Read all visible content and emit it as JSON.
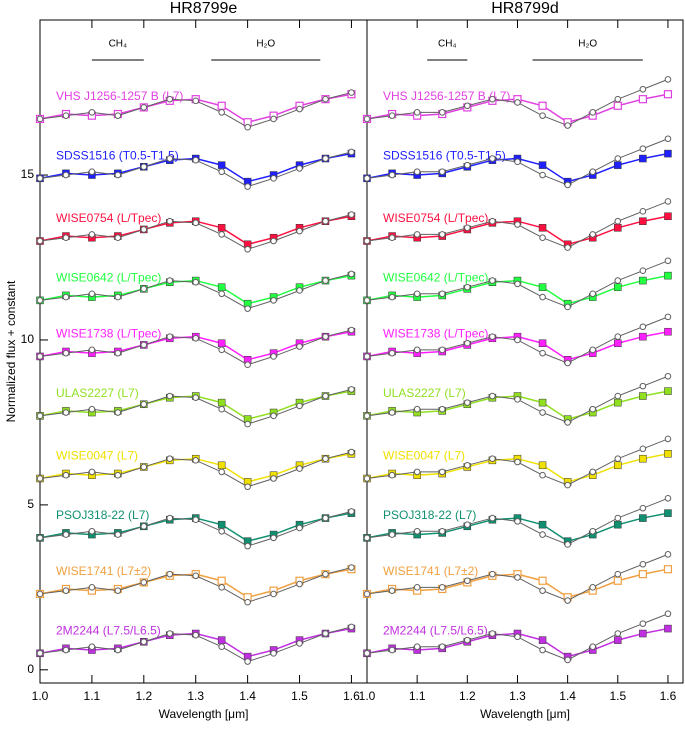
{
  "chart_data": [
    {
      "type": "line",
      "title": "HR8799e",
      "x_label": "Wavelength [μm]",
      "y_label": "Normalized flux + constant",
      "x": [
        1.0,
        1.05,
        1.1,
        1.15,
        1.2,
        1.25,
        1.3,
        1.35,
        1.4,
        1.45,
        1.5,
        1.55,
        1.6
      ],
      "xlim": [
        1.0,
        1.63
      ],
      "ylim": [
        -0.4,
        19.7
      ],
      "xticks": [
        {
          "value": 1.0,
          "label": "1.0"
        },
        1.1,
        1.2,
        1.3,
        1.4,
        1.5,
        1.6
      ],
      "yticks": [
        0,
        5,
        10,
        15
      ],
      "annotations": [
        {
          "text": "CH₄",
          "x": [
            1.1,
            1.2
          ]
        },
        {
          "text": "H₂O",
          "x": [
            1.33,
            1.54
          ]
        }
      ],
      "series": [
        {
          "name": "2M2244 (L7.5/L6.5)",
          "color": "#c030e0",
          "marker": "filled",
          "values": [
            0.5,
            0.65,
            0.6,
            0.65,
            0.85,
            1.05,
            1.1,
            0.9,
            0.4,
            0.6,
            0.9,
            1.1,
            1.25
          ]
        },
        {
          "color": "#606060",
          "values": [
            0.5,
            0.6,
            0.7,
            0.6,
            0.85,
            1.1,
            1.05,
            0.7,
            0.25,
            0.5,
            0.8,
            1.1,
            1.3
          ]
        },
        {
          "name": "WISE1741 (L7±2)",
          "color": "#f0a040",
          "marker": "open",
          "values": [
            2.3,
            2.45,
            2.4,
            2.45,
            2.65,
            2.85,
            2.9,
            2.7,
            2.2,
            2.4,
            2.7,
            2.9,
            3.05
          ]
        },
        {
          "color": "#606060",
          "values": [
            2.3,
            2.4,
            2.5,
            2.4,
            2.65,
            2.9,
            2.85,
            2.5,
            2.05,
            2.3,
            2.6,
            2.9,
            3.1
          ]
        },
        {
          "name": "PSOJ318-22 (L7)",
          "color": "#109070",
          "marker": "filled",
          "values": [
            4.0,
            4.15,
            4.1,
            4.15,
            4.35,
            4.55,
            4.6,
            4.4,
            3.9,
            4.1,
            4.4,
            4.6,
            4.75
          ]
        },
        {
          "color": "#606060",
          "values": [
            4.0,
            4.1,
            4.2,
            4.1,
            4.35,
            4.6,
            4.55,
            4.2,
            3.75,
            4.0,
            4.3,
            4.6,
            4.8
          ]
        },
        {
          "name": "WISE0047 (L7)",
          "color": "#f0e000",
          "marker": "filled",
          "values": [
            5.8,
            5.95,
            5.9,
            5.95,
            6.15,
            6.35,
            6.4,
            6.2,
            5.7,
            5.9,
            6.2,
            6.4,
            6.55
          ]
        },
        {
          "color": "#606060",
          "values": [
            5.8,
            5.9,
            6.0,
            5.9,
            6.15,
            6.4,
            6.35,
            6.0,
            5.55,
            5.8,
            6.1,
            6.4,
            6.6
          ]
        },
        {
          "name": "ULAS2227 (L7)",
          "color": "#90e020",
          "marker": "filled",
          "values": [
            7.7,
            7.85,
            7.8,
            7.85,
            8.05,
            8.25,
            8.3,
            8.1,
            7.6,
            7.8,
            8.1,
            8.3,
            8.45
          ]
        },
        {
          "color": "#606060",
          "values": [
            7.7,
            7.8,
            7.9,
            7.8,
            8.05,
            8.3,
            8.25,
            7.9,
            7.45,
            7.7,
            8.0,
            8.3,
            8.5
          ]
        },
        {
          "name": "WISE1738 (L/Tpec)",
          "color": "#ff20ff",
          "marker": "filled",
          "values": [
            9.5,
            9.65,
            9.6,
            9.65,
            9.85,
            10.05,
            10.1,
            9.9,
            9.4,
            9.6,
            9.9,
            10.1,
            10.25
          ]
        },
        {
          "color": "#606060",
          "values": [
            9.5,
            9.6,
            9.7,
            9.6,
            9.85,
            10.1,
            10.05,
            9.7,
            9.25,
            9.5,
            9.8,
            10.1,
            10.3
          ]
        },
        {
          "name": "WISE0642 (L/Tpec)",
          "color": "#20ff40",
          "marker": "filled",
          "values": [
            11.2,
            11.35,
            11.3,
            11.35,
            11.55,
            11.75,
            11.8,
            11.6,
            11.1,
            11.3,
            11.6,
            11.8,
            11.95
          ]
        },
        {
          "color": "#606060",
          "values": [
            11.2,
            11.3,
            11.4,
            11.3,
            11.55,
            11.8,
            11.75,
            11.4,
            10.95,
            11.2,
            11.5,
            11.8,
            12.0
          ]
        },
        {
          "name": "WISE0754 (L/Tpec)",
          "color": "#ff1040",
          "marker": "filled",
          "values": [
            13.0,
            13.15,
            13.1,
            13.15,
            13.35,
            13.55,
            13.6,
            13.4,
            12.9,
            13.1,
            13.4,
            13.6,
            13.75
          ]
        },
        {
          "color": "#606060",
          "values": [
            13.0,
            13.1,
            13.2,
            13.1,
            13.35,
            13.6,
            13.55,
            13.2,
            12.75,
            13.0,
            13.3,
            13.6,
            13.8
          ]
        },
        {
          "name": "SDSS1516 (T0.5-T1.5)",
          "color": "#2020ff",
          "marker": "filled",
          "values": [
            14.9,
            15.05,
            15.0,
            15.05,
            15.25,
            15.45,
            15.5,
            15.3,
            14.8,
            15.0,
            15.3,
            15.5,
            15.65
          ]
        },
        {
          "color": "#606060",
          "values": [
            14.9,
            15.0,
            15.1,
            15.0,
            15.25,
            15.5,
            15.45,
            15.1,
            14.65,
            14.9,
            15.2,
            15.5,
            15.7
          ]
        },
        {
          "name": "VHS J1256-1257 B (L7)",
          "color": "#e040e0",
          "marker": "open",
          "values": [
            16.7,
            16.85,
            16.8,
            16.85,
            17.05,
            17.25,
            17.3,
            17.1,
            16.6,
            16.8,
            17.1,
            17.3,
            17.45
          ]
        },
        {
          "color": "#606060",
          "values": [
            16.7,
            16.8,
            16.9,
            16.8,
            17.05,
            17.3,
            17.25,
            16.9,
            16.45,
            16.7,
            17.0,
            17.3,
            17.5
          ]
        }
      ]
    },
    {
      "type": "line",
      "title": "HR8799d",
      "x_label": "Wavelength [μm]",
      "x": [
        1.0,
        1.05,
        1.1,
        1.15,
        1.2,
        1.25,
        1.3,
        1.35,
        1.4,
        1.45,
        1.5,
        1.55,
        1.6
      ],
      "xlim": [
        1.0,
        1.63
      ],
      "ylim": [
        -0.4,
        19.7
      ],
      "xticks": [
        {
          "value": 1.0,
          "label": "1.0"
        },
        1.1,
        1.2,
        1.3,
        1.4,
        1.5,
        1.6
      ],
      "annotations": [
        {
          "text": "CH₄",
          "x": [
            1.12,
            1.2
          ]
        },
        {
          "text": "H₂O",
          "x": [
            1.33,
            1.55
          ]
        }
      ],
      "series": [
        {
          "name": "2M2244 (L7.5/L6.5)",
          "color": "#c030e0",
          "marker": "filled",
          "values": [
            0.5,
            0.65,
            0.6,
            0.65,
            0.85,
            1.05,
            1.1,
            0.9,
            0.4,
            0.6,
            0.9,
            1.1,
            1.25
          ]
        },
        {
          "color": "#606060",
          "values": [
            0.5,
            0.6,
            0.7,
            0.7,
            0.9,
            1.1,
            1.0,
            0.6,
            0.3,
            0.7,
            1.1,
            1.4,
            1.7
          ]
        },
        {
          "name": "WISE1741 (L7±2)",
          "color": "#f0a040",
          "marker": "open",
          "values": [
            2.3,
            2.45,
            2.4,
            2.45,
            2.65,
            2.85,
            2.9,
            2.7,
            2.2,
            2.4,
            2.7,
            2.9,
            3.05
          ]
        },
        {
          "color": "#606060",
          "values": [
            2.3,
            2.4,
            2.5,
            2.5,
            2.7,
            2.9,
            2.8,
            2.4,
            2.1,
            2.5,
            2.9,
            3.2,
            3.5
          ]
        },
        {
          "name": "PSOJ318-22 (L7)",
          "color": "#109070",
          "marker": "filled",
          "values": [
            4.0,
            4.15,
            4.1,
            4.15,
            4.35,
            4.55,
            4.6,
            4.4,
            3.9,
            4.1,
            4.4,
            4.6,
            4.75
          ]
        },
        {
          "color": "#606060",
          "values": [
            4.0,
            4.1,
            4.2,
            4.2,
            4.4,
            4.6,
            4.5,
            4.1,
            3.8,
            4.2,
            4.6,
            4.9,
            5.2
          ]
        },
        {
          "name": "WISE0047 (L7)",
          "color": "#f0e000",
          "marker": "filled",
          "values": [
            5.8,
            5.95,
            5.9,
            5.95,
            6.15,
            6.35,
            6.4,
            6.2,
            5.7,
            5.9,
            6.2,
            6.4,
            6.55
          ]
        },
        {
          "color": "#606060",
          "values": [
            5.8,
            5.9,
            6.0,
            6.0,
            6.2,
            6.4,
            6.3,
            5.9,
            5.6,
            6.0,
            6.4,
            6.7,
            7.0
          ]
        },
        {
          "name": "ULAS2227 (L7)",
          "color": "#90e020",
          "marker": "filled",
          "values": [
            7.7,
            7.85,
            7.8,
            7.85,
            8.05,
            8.25,
            8.3,
            8.1,
            7.6,
            7.8,
            8.1,
            8.3,
            8.45
          ]
        },
        {
          "color": "#606060",
          "values": [
            7.7,
            7.8,
            7.9,
            7.9,
            8.1,
            8.3,
            8.2,
            7.8,
            7.5,
            7.9,
            8.3,
            8.6,
            8.9
          ]
        },
        {
          "name": "WISE1738 (L/Tpec)",
          "color": "#ff20ff",
          "marker": "filled",
          "values": [
            9.5,
            9.65,
            9.6,
            9.65,
            9.85,
            10.05,
            10.1,
            9.9,
            9.4,
            9.6,
            9.9,
            10.1,
            10.25
          ]
        },
        {
          "color": "#606060",
          "values": [
            9.5,
            9.6,
            9.7,
            9.7,
            9.9,
            10.1,
            10.0,
            9.6,
            9.3,
            9.7,
            10.1,
            10.4,
            10.7
          ]
        },
        {
          "name": "WISE0642 (L/Tpec)",
          "color": "#20ff40",
          "marker": "filled",
          "values": [
            11.2,
            11.35,
            11.3,
            11.35,
            11.55,
            11.75,
            11.8,
            11.6,
            11.1,
            11.3,
            11.6,
            11.8,
            11.95
          ]
        },
        {
          "color": "#606060",
          "values": [
            11.2,
            11.3,
            11.4,
            11.4,
            11.6,
            11.8,
            11.7,
            11.3,
            11.0,
            11.4,
            11.8,
            12.1,
            12.4
          ]
        },
        {
          "name": "WISE0754 (L/Tpec)",
          "color": "#ff1040",
          "marker": "filled",
          "values": [
            13.0,
            13.15,
            13.1,
            13.15,
            13.35,
            13.55,
            13.6,
            13.4,
            12.9,
            13.1,
            13.4,
            13.6,
            13.75
          ]
        },
        {
          "color": "#606060",
          "values": [
            13.0,
            13.1,
            13.2,
            13.2,
            13.4,
            13.6,
            13.5,
            13.1,
            12.8,
            13.2,
            13.6,
            13.9,
            14.2
          ]
        },
        {
          "name": "SDSS1516 (T0.5-T1.5)",
          "color": "#2020ff",
          "marker": "filled",
          "values": [
            14.9,
            15.05,
            15.0,
            15.05,
            15.25,
            15.45,
            15.5,
            15.3,
            14.8,
            15.0,
            15.3,
            15.5,
            15.65
          ]
        },
        {
          "color": "#606060",
          "values": [
            14.9,
            15.0,
            15.1,
            15.1,
            15.3,
            15.5,
            15.4,
            15.0,
            14.7,
            15.1,
            15.5,
            15.8,
            16.1
          ]
        },
        {
          "name": "VHS J1256-1257 B (L7)",
          "color": "#e040e0",
          "marker": "open",
          "values": [
            16.7,
            16.85,
            16.8,
            16.85,
            17.05,
            17.25,
            17.3,
            17.1,
            16.6,
            16.8,
            17.1,
            17.3,
            17.45
          ]
        },
        {
          "color": "#606060",
          "values": [
            16.7,
            16.8,
            16.9,
            16.9,
            17.1,
            17.3,
            17.2,
            16.8,
            16.5,
            16.9,
            17.3,
            17.6,
            17.9
          ]
        }
      ]
    }
  ]
}
